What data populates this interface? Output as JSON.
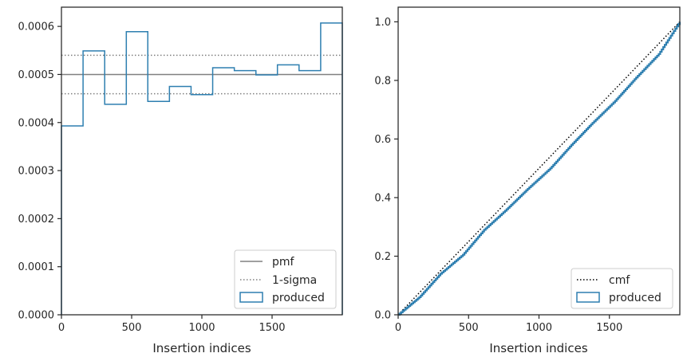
{
  "chart_data": [
    {
      "type": "histogram",
      "xlabel": "Insertion indices",
      "ylabel": "",
      "xlim": [
        0,
        2000
      ],
      "ylim": [
        0,
        0.00064
      ],
      "xticks": [
        0,
        500,
        1000,
        1500
      ],
      "xtick_labels": [
        "0",
        "500",
        "1000",
        "1500"
      ],
      "yticks": [
        0,
        0.0001,
        0.0002,
        0.0003,
        0.0004,
        0.0005,
        0.0006
      ],
      "ytick_labels": [
        "0.0000",
        "0.0001",
        "0.0002",
        "0.0003",
        "0.0004",
        "0.0005",
        "0.0006"
      ],
      "bin_edges": [
        0,
        154,
        308,
        462,
        615,
        769,
        923,
        1077,
        1231,
        1385,
        1538,
        1692,
        1846,
        2000
      ],
      "values": [
        0.000393,
        0.000549,
        0.000438,
        0.000589,
        0.000444,
        0.000475,
        0.000458,
        0.000514,
        0.000508,
        0.000499,
        0.00052,
        0.000508,
        0.000607
      ],
      "pmf": 0.0005,
      "sigma_band": [
        0.00046,
        0.00054
      ],
      "legend": {
        "position": "bottom-right",
        "entries": [
          {
            "label": "pmf",
            "style": "solid-gray"
          },
          {
            "label": "1-sigma",
            "style": "dotted-gray"
          },
          {
            "label": "produced",
            "style": "step-blue"
          }
        ]
      },
      "colors": {
        "produced": "#2e7fb0",
        "pmf": "#808080",
        "sigma": "#808080"
      }
    },
    {
      "type": "line",
      "xlabel": "Insertion indices",
      "ylabel": "",
      "xlim": [
        0,
        2000
      ],
      "ylim": [
        0,
        1.05
      ],
      "xticks": [
        0,
        500,
        1000,
        1500
      ],
      "xtick_labels": [
        "0",
        "500",
        "1000",
        "1500"
      ],
      "yticks": [
        0,
        0.2,
        0.4,
        0.6,
        0.8,
        1.0
      ],
      "ytick_labels": [
        "0.0",
        "0.2",
        "0.4",
        "0.6",
        "0.8",
        "1.0"
      ],
      "series": [
        {
          "name": "cmf",
          "x": [
            0,
            2000
          ],
          "y": [
            0,
            1.0
          ],
          "style": "dotted-black"
        },
        {
          "name": "produced",
          "x": [
            0,
            150,
            300,
            460,
            610,
            770,
            920,
            1080,
            1230,
            1380,
            1540,
            1690,
            1850,
            2000
          ],
          "y": [
            0,
            0.06,
            0.14,
            0.205,
            0.29,
            0.36,
            0.43,
            0.5,
            0.58,
            0.655,
            0.73,
            0.81,
            0.89,
            1.0
          ],
          "style": "step-blue"
        }
      ],
      "legend": {
        "position": "bottom-right",
        "entries": [
          {
            "label": "cmf",
            "style": "dotted-black"
          },
          {
            "label": "produced",
            "style": "step-blue"
          }
        ]
      },
      "colors": {
        "produced": "#2e7fb0",
        "cmf": "#000000"
      }
    }
  ]
}
